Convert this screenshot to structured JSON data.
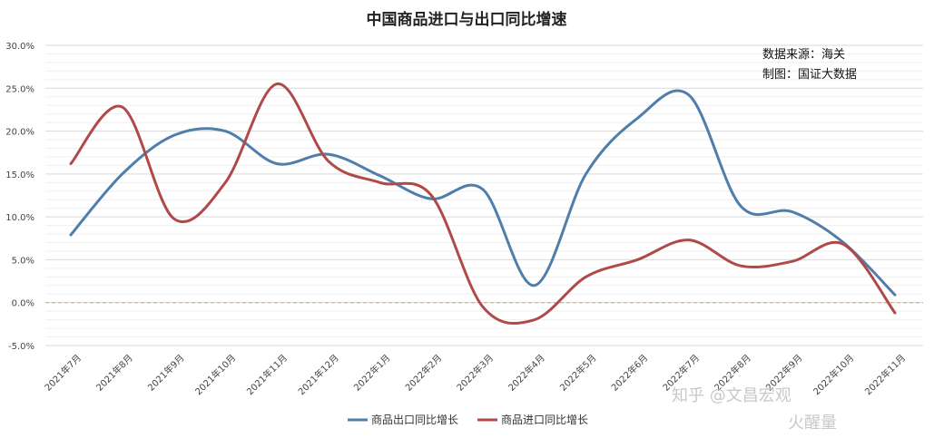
{
  "chart_data": {
    "type": "line",
    "title": "中国商品进口与出口同比增速",
    "categories": [
      "2021年7月",
      "2021年8月",
      "2021年9月",
      "2021年10月",
      "2021年11月",
      "2021年12月",
      "2022年1月",
      "2022年2月",
      "2022年3月",
      "2022年4月",
      "2022年5月",
      "2022年6月",
      "2022年7月",
      "2022年8月",
      "2022年9月",
      "2022年10月",
      "2022年11月"
    ],
    "ylim": [
      -5,
      30
    ],
    "yticks": [
      "-5.0%",
      "0.0%",
      "5.0%",
      "10.0%",
      "15.0%",
      "20.0%",
      "25.0%",
      "30.0%"
    ],
    "grid": true,
    "series": [
      {
        "name": "商品出口同比增长",
        "color": "#4f7eab",
        "values": [
          7.9,
          15.0,
          19.5,
          20.0,
          16.2,
          17.3,
          14.8,
          12.1,
          13.2,
          2.0,
          15.0,
          21.5,
          24.2,
          11.3,
          10.6,
          7.0,
          0.9
        ]
      },
      {
        "name": "商品进口同比增长",
        "color": "#b04a48",
        "values": [
          16.2,
          22.8,
          9.8,
          14.0,
          25.5,
          16.5,
          14.0,
          12.5,
          -0.5,
          -2.0,
          3.0,
          5.0,
          7.3,
          4.3,
          4.8,
          6.8,
          -1.2
        ]
      }
    ],
    "baseline": {
      "value": 0,
      "color": "#e39b5d"
    },
    "legend_position": "bottom"
  },
  "annotations": {
    "source": "数据来源：海关",
    "maker": "制图：国证大数据"
  },
  "watermark": {
    "zhihu": "知乎 @文昌宏观",
    "logo": "火醒量"
  }
}
